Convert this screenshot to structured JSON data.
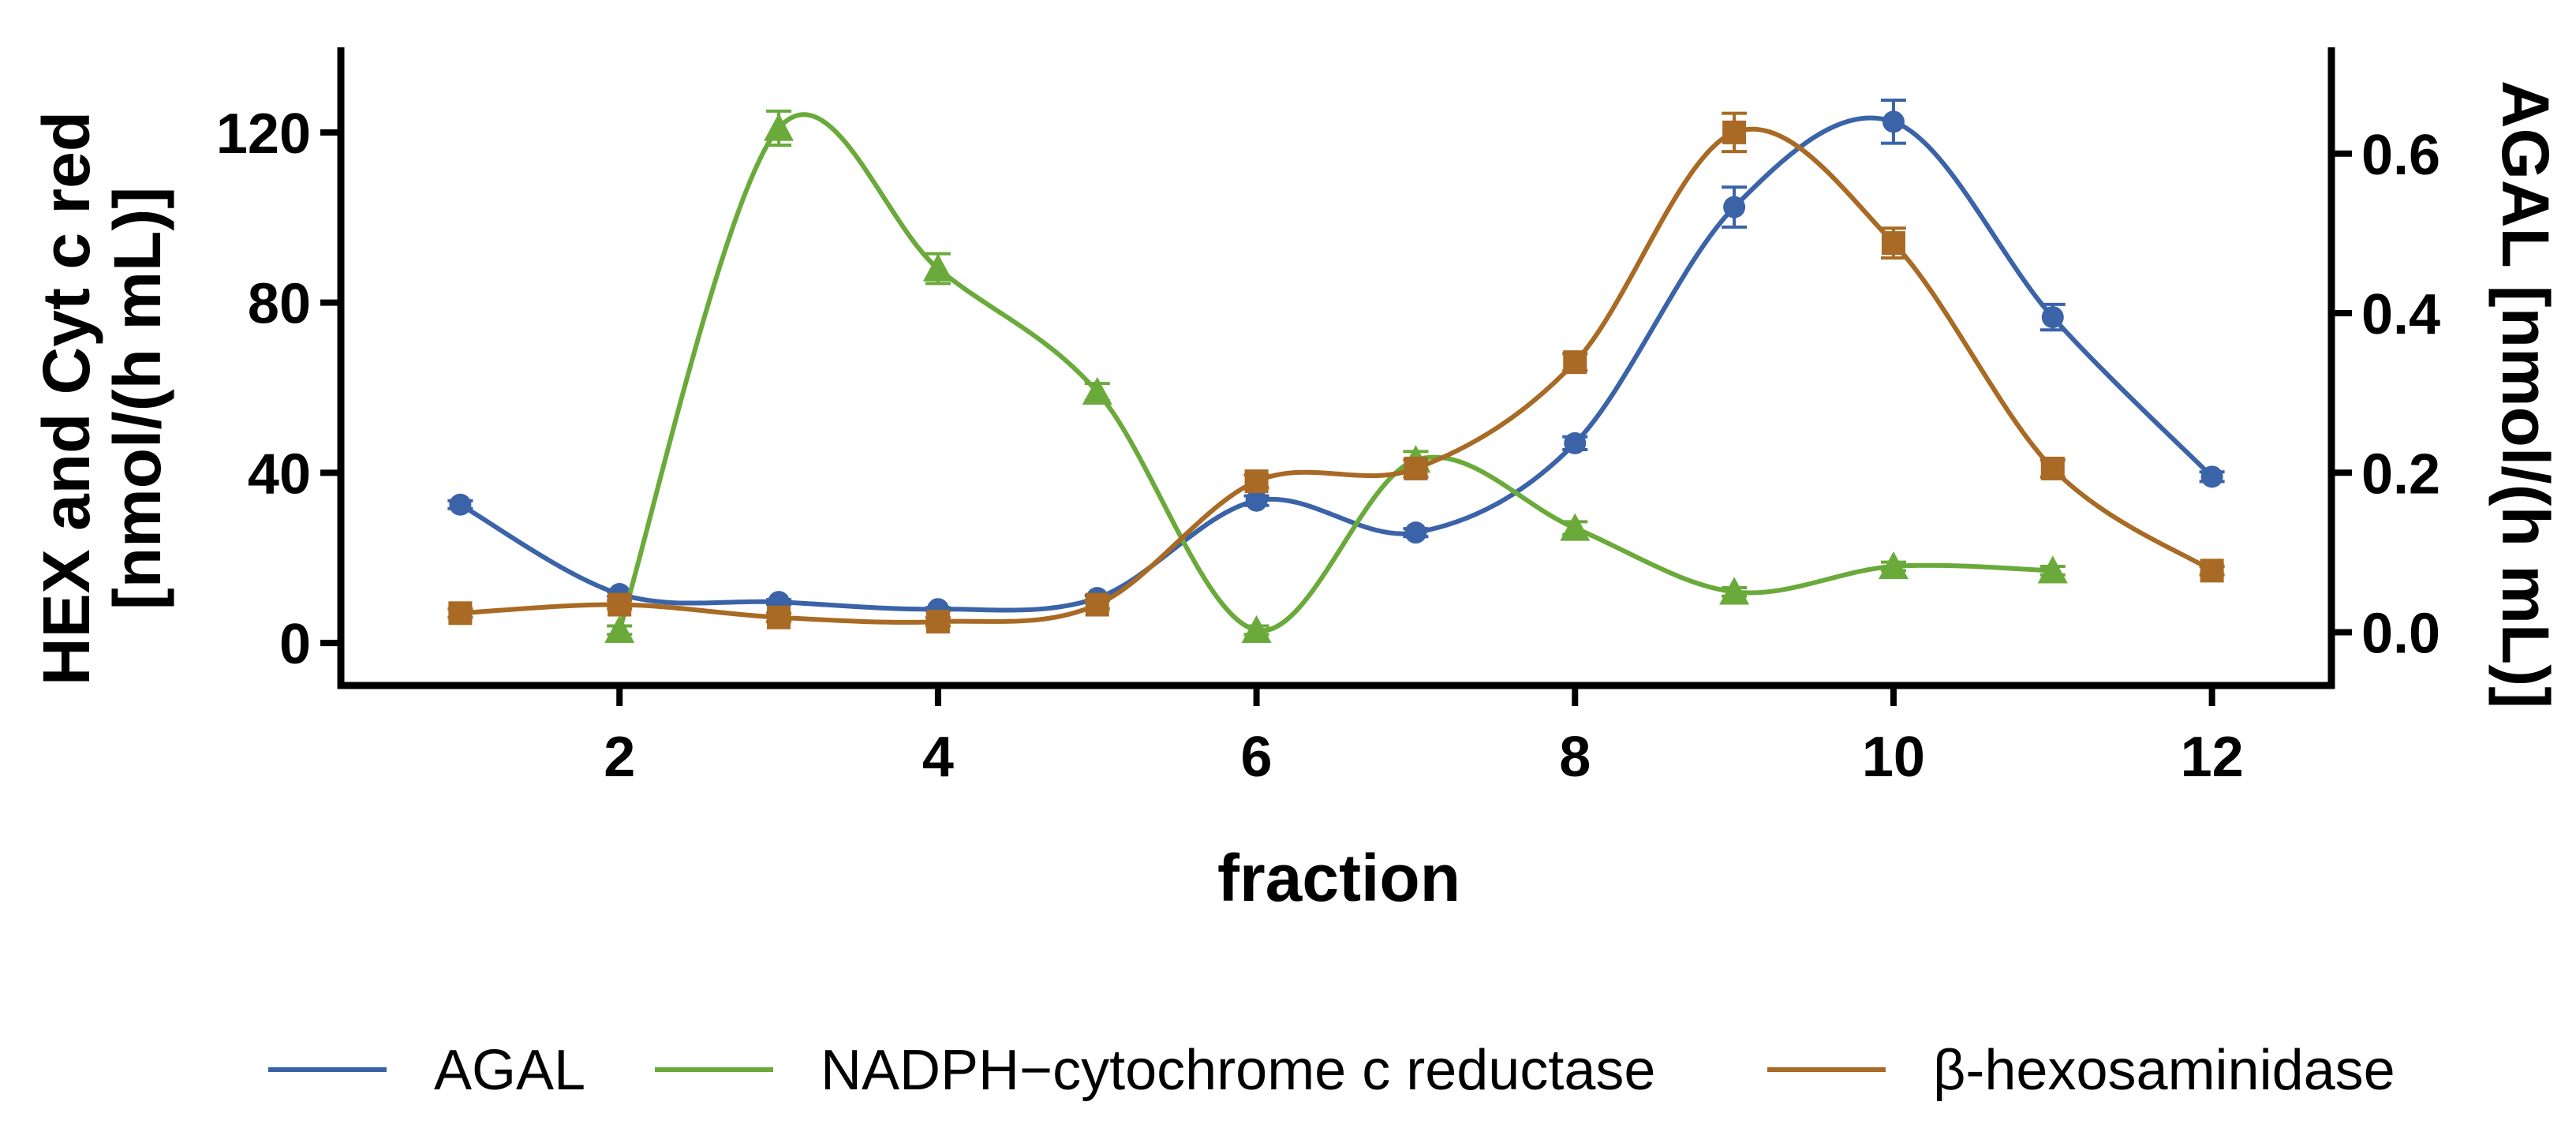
{
  "chart_data": {
    "type": "line",
    "xlabel": "fraction",
    "ylabel_left": [
      "HEX and Cyt c red",
      "[nmol/(h mL)]"
    ],
    "ylabel_right": "AGAL [nmol/(h mL)]",
    "xlim": [
      0.25,
      12.75
    ],
    "ylim_left": [
      -10,
      140
    ],
    "ylim_right": [
      -0.0667,
      0.7333
    ],
    "x_ticks": [
      2,
      4,
      6,
      8,
      10,
      12
    ],
    "y_ticks_left": [
      0,
      40,
      80,
      120
    ],
    "y_ticks_right": [
      0.0,
      0.2,
      0.4,
      0.6
    ],
    "y_tick_labels_right": [
      "0.0",
      "0.2",
      "0.4",
      "0.6"
    ],
    "legend_position": "bottom",
    "series": [
      {
        "name": "AGAL",
        "axis": "right",
        "marker": "circle",
        "color": "#3A63A8",
        "x": [
          1,
          2,
          3,
          4,
          5,
          6,
          7,
          8,
          9,
          10,
          11,
          12
        ],
        "y": [
          0.16,
          0.048,
          0.038,
          0.029,
          0.043,
          0.165,
          0.125,
          0.237,
          0.533,
          0.64,
          0.395,
          0.195
        ],
        "err": [
          0.005,
          0.003,
          0.003,
          0.002,
          0.003,
          0.006,
          0.005,
          0.008,
          0.025,
          0.027,
          0.016,
          0.006
        ]
      },
      {
        "name": "NADPH−cytochrome c reductase",
        "axis": "left",
        "marker": "triangle",
        "color": "#6AAA3A",
        "x": [
          2,
          3,
          4,
          5,
          6,
          7,
          8,
          9,
          10,
          11
        ],
        "y": [
          3,
          121,
          88,
          59,
          3,
          43,
          27,
          12,
          18,
          17
        ],
        "err": [
          1,
          4,
          3.5,
          2,
          1,
          2,
          1.5,
          1,
          1,
          1
        ]
      },
      {
        "name": "β-hexosaminidase",
        "axis": "left",
        "marker": "square",
        "color": "#A86A24",
        "x": [
          1,
          2,
          3,
          4,
          5,
          6,
          7,
          8,
          9,
          10,
          11,
          12
        ],
        "y": [
          7,
          9,
          6,
          5,
          9,
          38,
          41,
          66,
          120,
          94,
          41,
          17
        ],
        "err": [
          1,
          1,
          1,
          1,
          1,
          1.5,
          2,
          2,
          4.5,
          3.5,
          2,
          1
        ]
      }
    ]
  }
}
